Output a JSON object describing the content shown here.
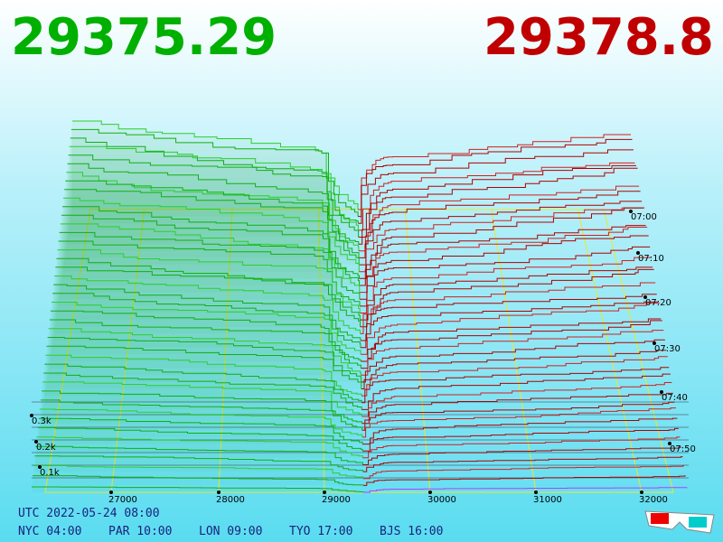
{
  "header": {
    "bid": "29375.29",
    "ask": "29378.8"
  },
  "price_axis": {
    "labels": [
      "27000",
      "28000",
      "29000",
      "30000",
      "31000",
      "32000"
    ]
  },
  "depth_axis": {
    "labels": [
      "0.3k",
      "0.2k",
      "0.1k"
    ]
  },
  "time_axis": {
    "labels": [
      "07:00",
      "07:10",
      "07:20",
      "07:30",
      "07:40",
      "07:50"
    ]
  },
  "footer": {
    "utc": "UTC 2022-05-24 08:00",
    "cities": [
      "NYC 04:00",
      "PAR 10:00",
      "LON 09:00",
      "TYO 17:00",
      "BJS 16:00"
    ]
  }
}
